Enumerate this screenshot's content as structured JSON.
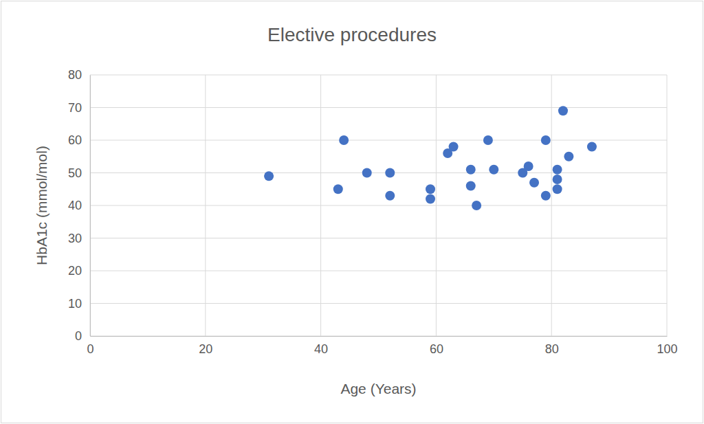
{
  "chart_data": {
    "type": "scatter",
    "title": "Elective procedures",
    "x_label": "Age (Years)",
    "y_label": "HbA1c (mmol/mol)",
    "x": [
      31,
      43,
      44,
      48,
      52,
      52,
      59,
      59,
      62,
      63,
      66,
      66,
      67,
      69,
      70,
      75,
      76,
      77,
      79,
      79,
      81,
      81,
      81,
      82,
      83,
      87
    ],
    "values": [
      49,
      45,
      60,
      50,
      50,
      43,
      45,
      42,
      56,
      58,
      51,
      46,
      40,
      60,
      51,
      50,
      52,
      47,
      60,
      43,
      51,
      48,
      45,
      69,
      55,
      58
    ],
    "color": "#4472c4",
    "marker": "circle",
    "xlim": [
      0,
      100
    ],
    "xticks": [
      0,
      20,
      40,
      60,
      80,
      100
    ],
    "ylim": [
      0,
      80
    ],
    "yticks": [
      0,
      10,
      20,
      30,
      40,
      50,
      60,
      70,
      80
    ],
    "grid": true
  }
}
